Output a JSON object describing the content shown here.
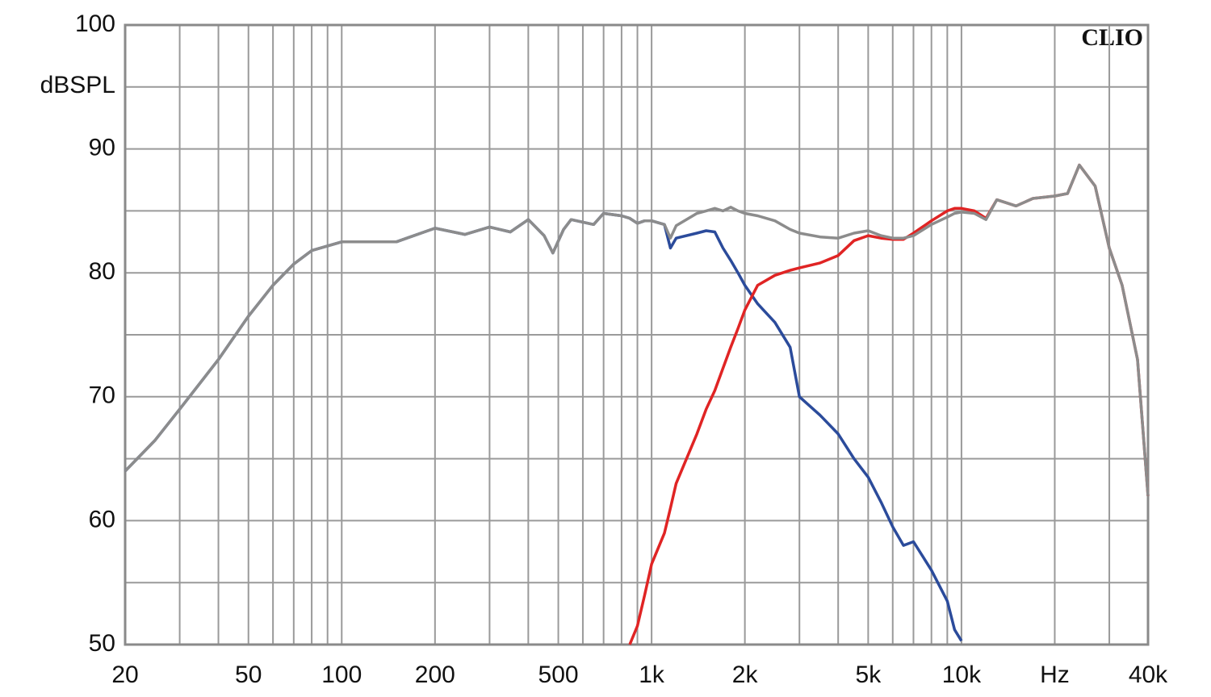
{
  "chart_data": {
    "type": "line",
    "annotation": "CLIO",
    "y_label": "dBSPL",
    "xscale": "log",
    "grid": true,
    "xlim": [
      20,
      40000
    ],
    "ylim": [
      50,
      100
    ],
    "xticks": [
      20,
      50,
      100,
      200,
      500,
      {
        "value": 1000,
        "label": "1k"
      },
      {
        "value": 2000,
        "label": "2k"
      },
      {
        "value": 5000,
        "label": "5k"
      },
      {
        "value": 10000,
        "label": "10k"
      },
      {
        "value": 20000,
        "label": "Hz"
      },
      {
        "value": 40000,
        "label": "40k"
      }
    ],
    "xticks_minor": [
      30,
      40,
      60,
      70,
      80,
      90,
      300,
      400,
      600,
      700,
      800,
      900,
      3000,
      4000,
      6000,
      7000,
      8000,
      9000,
      30000
    ],
    "yticks": [
      50,
      60,
      70,
      80,
      90,
      100
    ],
    "yticks_minor": [
      55,
      65,
      75,
      85,
      95
    ],
    "x": [
      20,
      25,
      30,
      40,
      50,
      60,
      70,
      80,
      100,
      150,
      200,
      250,
      300,
      350,
      400,
      450,
      480,
      520,
      550,
      650,
      700,
      800,
      850,
      900,
      950,
      1000,
      1100,
      1150,
      1200,
      1400,
      1500,
      1600,
      1700,
      1800,
      1900,
      2000,
      2200,
      2500,
      2800,
      3000,
      3500,
      4000,
      4500,
      5000,
      5500,
      6000,
      6500,
      7000,
      8000,
      9000,
      9500,
      10000,
      11000,
      12000,
      13000,
      15000,
      17000,
      20000,
      22000,
      24000,
      27000,
      30000,
      33000,
      37000,
      40000
    ],
    "series": [
      {
        "color": "#2b4b9b",
        "values": [
          64,
          66.5,
          69,
          73,
          76.5,
          79,
          80.7,
          81.8,
          82.5,
          82.5,
          83.6,
          83.1,
          83.7,
          83.3,
          84.3,
          83,
          81.6,
          83.5,
          84.3,
          83.9,
          84.8,
          84.6,
          84.4,
          84,
          84.2,
          84.2,
          83.9,
          82,
          82.8,
          83.2,
          83.4,
          83.3,
          82,
          81,
          80,
          79,
          77.5,
          76,
          74,
          70,
          68.5,
          67,
          65,
          63.5,
          61.5,
          59.5,
          58,
          58.3,
          56,
          53.5,
          51.2,
          50.3,
          null,
          null,
          null,
          null,
          null,
          null,
          null,
          null,
          null,
          null,
          null,
          null,
          null
        ]
      },
      {
        "color": "#e02424",
        "values": [
          null,
          null,
          null,
          null,
          null,
          null,
          null,
          null,
          null,
          null,
          null,
          null,
          null,
          null,
          null,
          null,
          null,
          null,
          null,
          null,
          null,
          null,
          50,
          51.5,
          54,
          56.5,
          59,
          61,
          63,
          67,
          69,
          70.5,
          72.3,
          74,
          75.5,
          77,
          79,
          79.8,
          80.2,
          80.4,
          80.8,
          81.4,
          82.6,
          83,
          82.8,
          82.7,
          82.7,
          83.2,
          84.2,
          85,
          85.2,
          85.2,
          85,
          84.4,
          85.9,
          85.4,
          86,
          86.2,
          86.4,
          88.7,
          87,
          82,
          79,
          73,
          62
        ]
      },
      {
        "color": "#8c8c8c",
        "values": [
          64,
          66.5,
          69,
          73,
          76.5,
          79,
          80.7,
          81.8,
          82.5,
          82.5,
          83.6,
          83.1,
          83.7,
          83.3,
          84.3,
          83,
          81.6,
          83.5,
          84.3,
          83.9,
          84.8,
          84.6,
          84.4,
          84,
          84.2,
          84.2,
          83.9,
          82.8,
          83.8,
          84.8,
          85,
          85.2,
          85,
          85.3,
          85,
          84.8,
          84.6,
          84.2,
          83.5,
          83.2,
          82.9,
          82.8,
          83.2,
          83.4,
          83,
          82.8,
          82.8,
          83,
          83.9,
          84.5,
          84.8,
          84.9,
          84.8,
          84.3,
          85.9,
          85.4,
          86,
          86.2,
          86.4,
          88.7,
          87,
          82,
          79,
          73,
          62
        ]
      }
    ]
  }
}
